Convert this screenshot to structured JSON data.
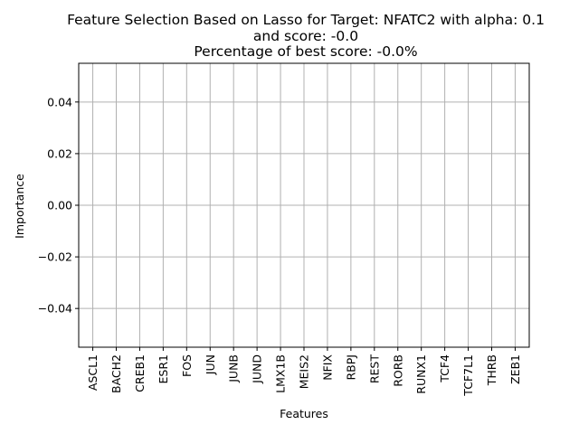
{
  "chart_data": {
    "type": "bar",
    "title": [
      "Feature Selection Based on Lasso for Target: NFATC2 with alpha: 0.1",
      "and score: -0.0",
      "Percentage of best score: -0.0%"
    ],
    "xlabel": "Features",
    "ylabel": "Importance",
    "categories": [
      "ASCL1",
      "BACH2",
      "CREB1",
      "ESR1",
      "FOS",
      "JUN",
      "JUNB",
      "JUND",
      "LMX1B",
      "MEIS2",
      "NFIX",
      "RBPJ",
      "REST",
      "RORB",
      "RUNX1",
      "TCF4",
      "TCF7L1",
      "THRB",
      "ZEB1"
    ],
    "values": [
      0,
      0,
      0,
      0,
      0,
      0,
      0,
      0,
      0,
      0,
      0,
      0,
      0,
      0,
      0,
      0,
      0,
      0,
      0
    ],
    "yticks": [
      -0.04,
      -0.02,
      0.0,
      0.02,
      0.04
    ],
    "ytick_labels": [
      "−0.04",
      "−0.02",
      "0.00",
      "0.02",
      "0.04"
    ],
    "ylim": [
      -0.055,
      0.055
    ],
    "grid": true,
    "colors": {
      "grid": "#b0b0b0",
      "axis": "#000000",
      "bar": "#1f77b4"
    }
  }
}
